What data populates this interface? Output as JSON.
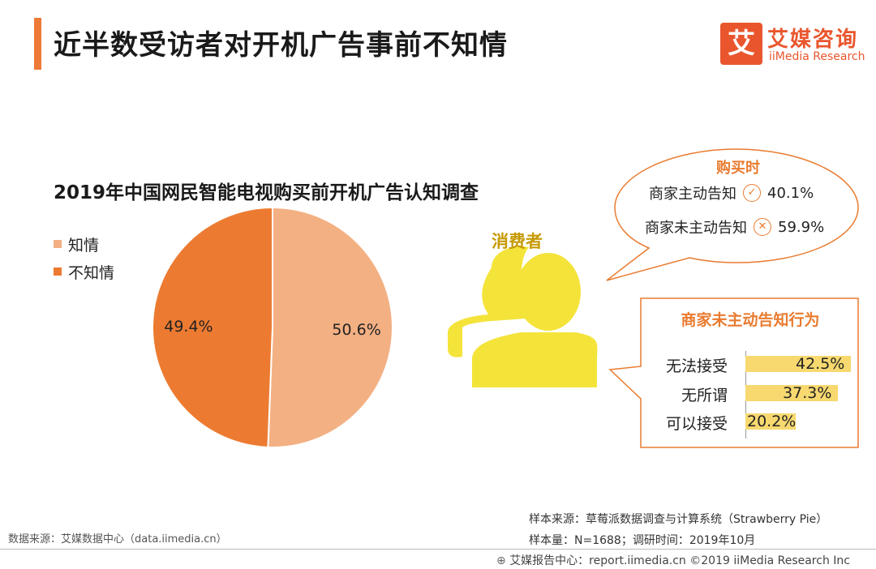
{
  "page_title": "近半数受访者对开机广告事前不知情",
  "logo": {
    "icon_char": "艾",
    "cn": "艾媒咨询",
    "en": "iiMedia Research"
  },
  "colors": {
    "accent": "#ee7a38",
    "pie_light": "#f3b083",
    "pie_dark": "#ec7b31",
    "bar": "#f7d970",
    "orange_text": "#e97b2f"
  },
  "chart_data": [
    {
      "type": "pie",
      "title": "2019年中国网民智能电视购买前开机广告认知调查",
      "slices": [
        {
          "label": "知情",
          "value": 50.6,
          "value_label": "50.6%",
          "color": "#f3b083"
        },
        {
          "label": "不知情",
          "value": 49.4,
          "value_label": "49.4%",
          "color": "#ec7b31"
        }
      ]
    },
    {
      "type": "bar",
      "title": "商家未主动告知行为",
      "categories": [
        "无法接受",
        "无所谓",
        "可以接受"
      ],
      "values": [
        42.5,
        37.3,
        20.2
      ],
      "value_labels": [
        "42.5%",
        "37.3%",
        "20.2%"
      ]
    }
  ],
  "consumer_label": "消费者",
  "bubble": {
    "title": "购买时",
    "rows": [
      {
        "label": "商家主动告知",
        "icon": "check-circle-icon",
        "icon_char": "✓",
        "value": "40.1%"
      },
      {
        "label": "商家未主动告知",
        "icon": "x-circle-icon",
        "icon_char": "✕",
        "value": "59.9%"
      }
    ]
  },
  "footer": {
    "data_source": "数据来源：艾媒数据中心（data.iimedia.cn）",
    "sample_source": "样本来源：草莓派数据调查与计算系统（Strawberry Pie）",
    "sample_size": "样本量：N=1688；调研时间：2019年10月",
    "bottom": "艾媒报告中心：report.iimedia.cn ©2019 iiMedia Research Inc",
    "bottom_icon": "globe-icon"
  }
}
